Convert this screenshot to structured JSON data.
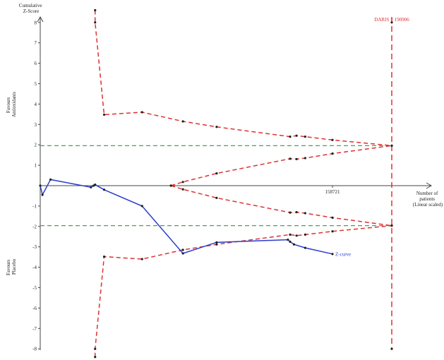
{
  "chart_data": {
    "type": "line",
    "ylabel": "Cumulative Z-Score",
    "xlabel": "Number of patients (Linear scaled)",
    "xlabel_lines": [
      "Number of",
      "patients",
      "(Linear scaled)"
    ],
    "ylabel_lines": [
      "Cumulative",
      "Z-Score"
    ],
    "favours_top_lines": [
      "Favours",
      "Antioxidants"
    ],
    "favours_bottom_lines": [
      "Favours",
      "Placebo"
    ],
    "y_ticks": [
      "8",
      "7",
      "6",
      "5",
      "4",
      "3",
      "2",
      "1",
      "-1",
      "-2",
      "-3",
      "-4",
      "-5",
      "-6",
      "-7",
      "-8"
    ],
    "y_tick_values": [
      8,
      7,
      6,
      5,
      4,
      3,
      2,
      1,
      -1,
      -2,
      -3,
      -4,
      -5,
      -6,
      -7,
      -8
    ],
    "ylim": [
      -8.5,
      8.6
    ],
    "xlim": [
      0,
      217000
    ],
    "x_tick_label": "158721",
    "x_tick_value": 158721,
    "daris_label": "DARIS = 190906",
    "daris_value": 190906,
    "conventional_boundary": 1.96,
    "upper_boundary": {
      "x": [
        29800,
        29800,
        34700,
        55300,
        77500,
        95800,
        135700,
        139200,
        143900,
        158700,
        190906
      ],
      "y": [
        8.6,
        8.0,
        3.48,
        3.6,
        3.15,
        2.88,
        2.4,
        2.45,
        2.4,
        2.24,
        1.96
      ]
    },
    "lower_boundary": {
      "x": [
        29800,
        29800,
        34700,
        55300,
        77500,
        95800,
        135700,
        139200,
        143900,
        158700,
        190906
      ],
      "y": [
        -8.4,
        -8.0,
        -3.48,
        -3.6,
        -3.15,
        -2.88,
        -2.4,
        -2.45,
        -2.4,
        -2.24,
        -1.96
      ]
    },
    "futility_upper": {
      "x": [
        71000,
        77500,
        95800,
        135700,
        139200,
        143900,
        158700,
        190906
      ],
      "y": [
        0.0,
        0.18,
        0.6,
        1.32,
        1.3,
        1.35,
        1.57,
        1.96
      ]
    },
    "futility_lower": {
      "x": [
        71000,
        77500,
        95800,
        135700,
        139200,
        143900,
        158700,
        190906
      ],
      "y": [
        0.0,
        -0.18,
        -0.6,
        -1.32,
        -1.3,
        -1.35,
        -1.57,
        -1.96
      ]
    },
    "z_curve": {
      "name": "Z-curve",
      "x": [
        0,
        1200,
        5600,
        27500,
        29000,
        29800,
        34700,
        55300,
        77500,
        95800,
        134500,
        135700,
        137800,
        143900,
        158700
      ],
      "y": [
        0.0,
        -0.45,
        0.3,
        -0.08,
        0.0,
        0.05,
        -0.2,
        -1.0,
        -3.32,
        -2.78,
        -2.65,
        -2.75,
        -2.88,
        -3.05,
        -3.35
      ]
    }
  }
}
